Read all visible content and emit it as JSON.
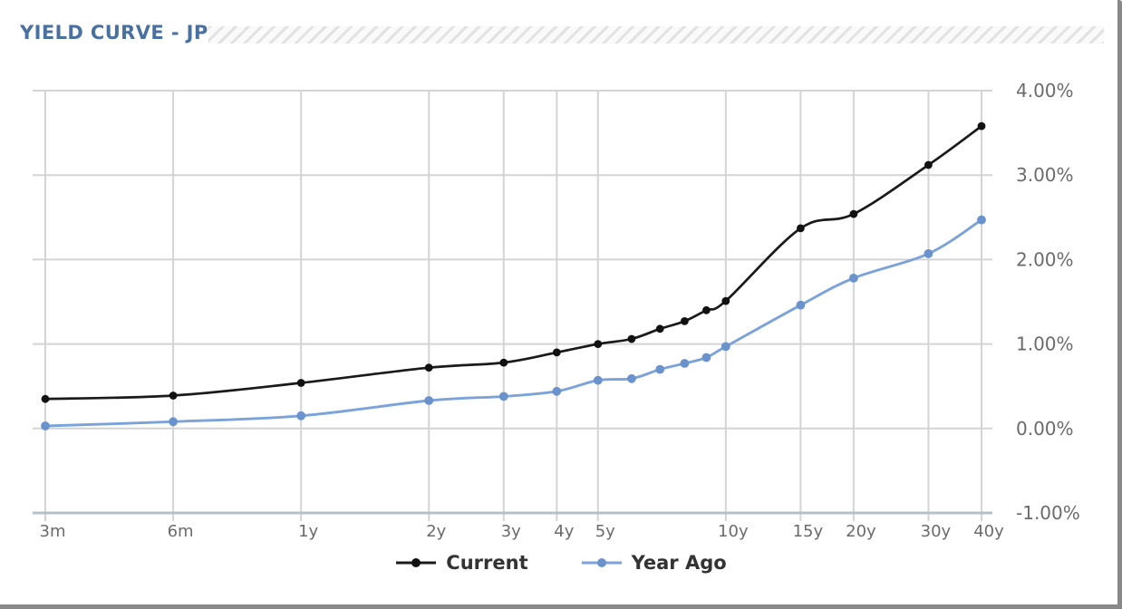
{
  "header": {
    "title": "YIELD CURVE - JP",
    "title_color": "#4a70a0"
  },
  "chart_data": {
    "type": "line",
    "title": "YIELD CURVE - JP",
    "x_scale": "log",
    "x_unit": "years-to-maturity",
    "x": [
      0.25,
      0.5,
      1,
      2,
      3,
      4,
      5,
      6,
      7,
      8,
      9,
      10,
      15,
      20,
      30,
      40
    ],
    "x_ticks": [
      {
        "label": "3m",
        "x": 0.25
      },
      {
        "label": "6m",
        "x": 0.5
      },
      {
        "label": "1y",
        "x": 1
      },
      {
        "label": "2y",
        "x": 2
      },
      {
        "label": "3y",
        "x": 3
      },
      {
        "label": "4y",
        "x": 4
      },
      {
        "label": "5y",
        "x": 5
      },
      {
        "label": "10y",
        "x": 10
      },
      {
        "label": "15y",
        "x": 15
      },
      {
        "label": "20y",
        "x": 20
      },
      {
        "label": "30y",
        "x": 30
      },
      {
        "label": "40y",
        "x": 40
      }
    ],
    "ylim": [
      -1,
      4
    ],
    "y_ticks": [
      {
        "label": "4.00%",
        "value": 4
      },
      {
        "label": "3.00%",
        "value": 3
      },
      {
        "label": "2.00%",
        "value": 2
      },
      {
        "label": "1.00%",
        "value": 1
      },
      {
        "label": "0.00%",
        "value": 0
      },
      {
        "label": "-1.00%",
        "value": -1
      }
    ],
    "series": [
      {
        "name": "Current",
        "color": "#1a1a1a",
        "marker_color": "#111111",
        "marker_radius": 4.4,
        "line_width": 2.7,
        "values": [
          0.35,
          0.39,
          0.54,
          0.72,
          0.78,
          0.9,
          1.0,
          1.06,
          1.18,
          1.27,
          1.4,
          1.51,
          2.37,
          2.54,
          3.12,
          3.58
        ]
      },
      {
        "name": "Year Ago",
        "color": "#7ba3da",
        "marker_color": "#6a93cd",
        "marker_radius": 4.9,
        "line_width": 2.9,
        "values": [
          0.03,
          0.08,
          0.15,
          0.33,
          0.38,
          0.44,
          0.57,
          0.59,
          0.7,
          0.77,
          0.84,
          0.97,
          1.46,
          1.78,
          2.07,
          2.47
        ]
      }
    ],
    "grid": true,
    "grid_color": "#d4d4d4",
    "axis_line_color": "#b6c0ca",
    "axis_label_color": "#6b6b6b",
    "legend_position": "bottom"
  },
  "legend": {
    "items": [
      {
        "label": "Current"
      },
      {
        "label": "Year Ago"
      }
    ]
  }
}
